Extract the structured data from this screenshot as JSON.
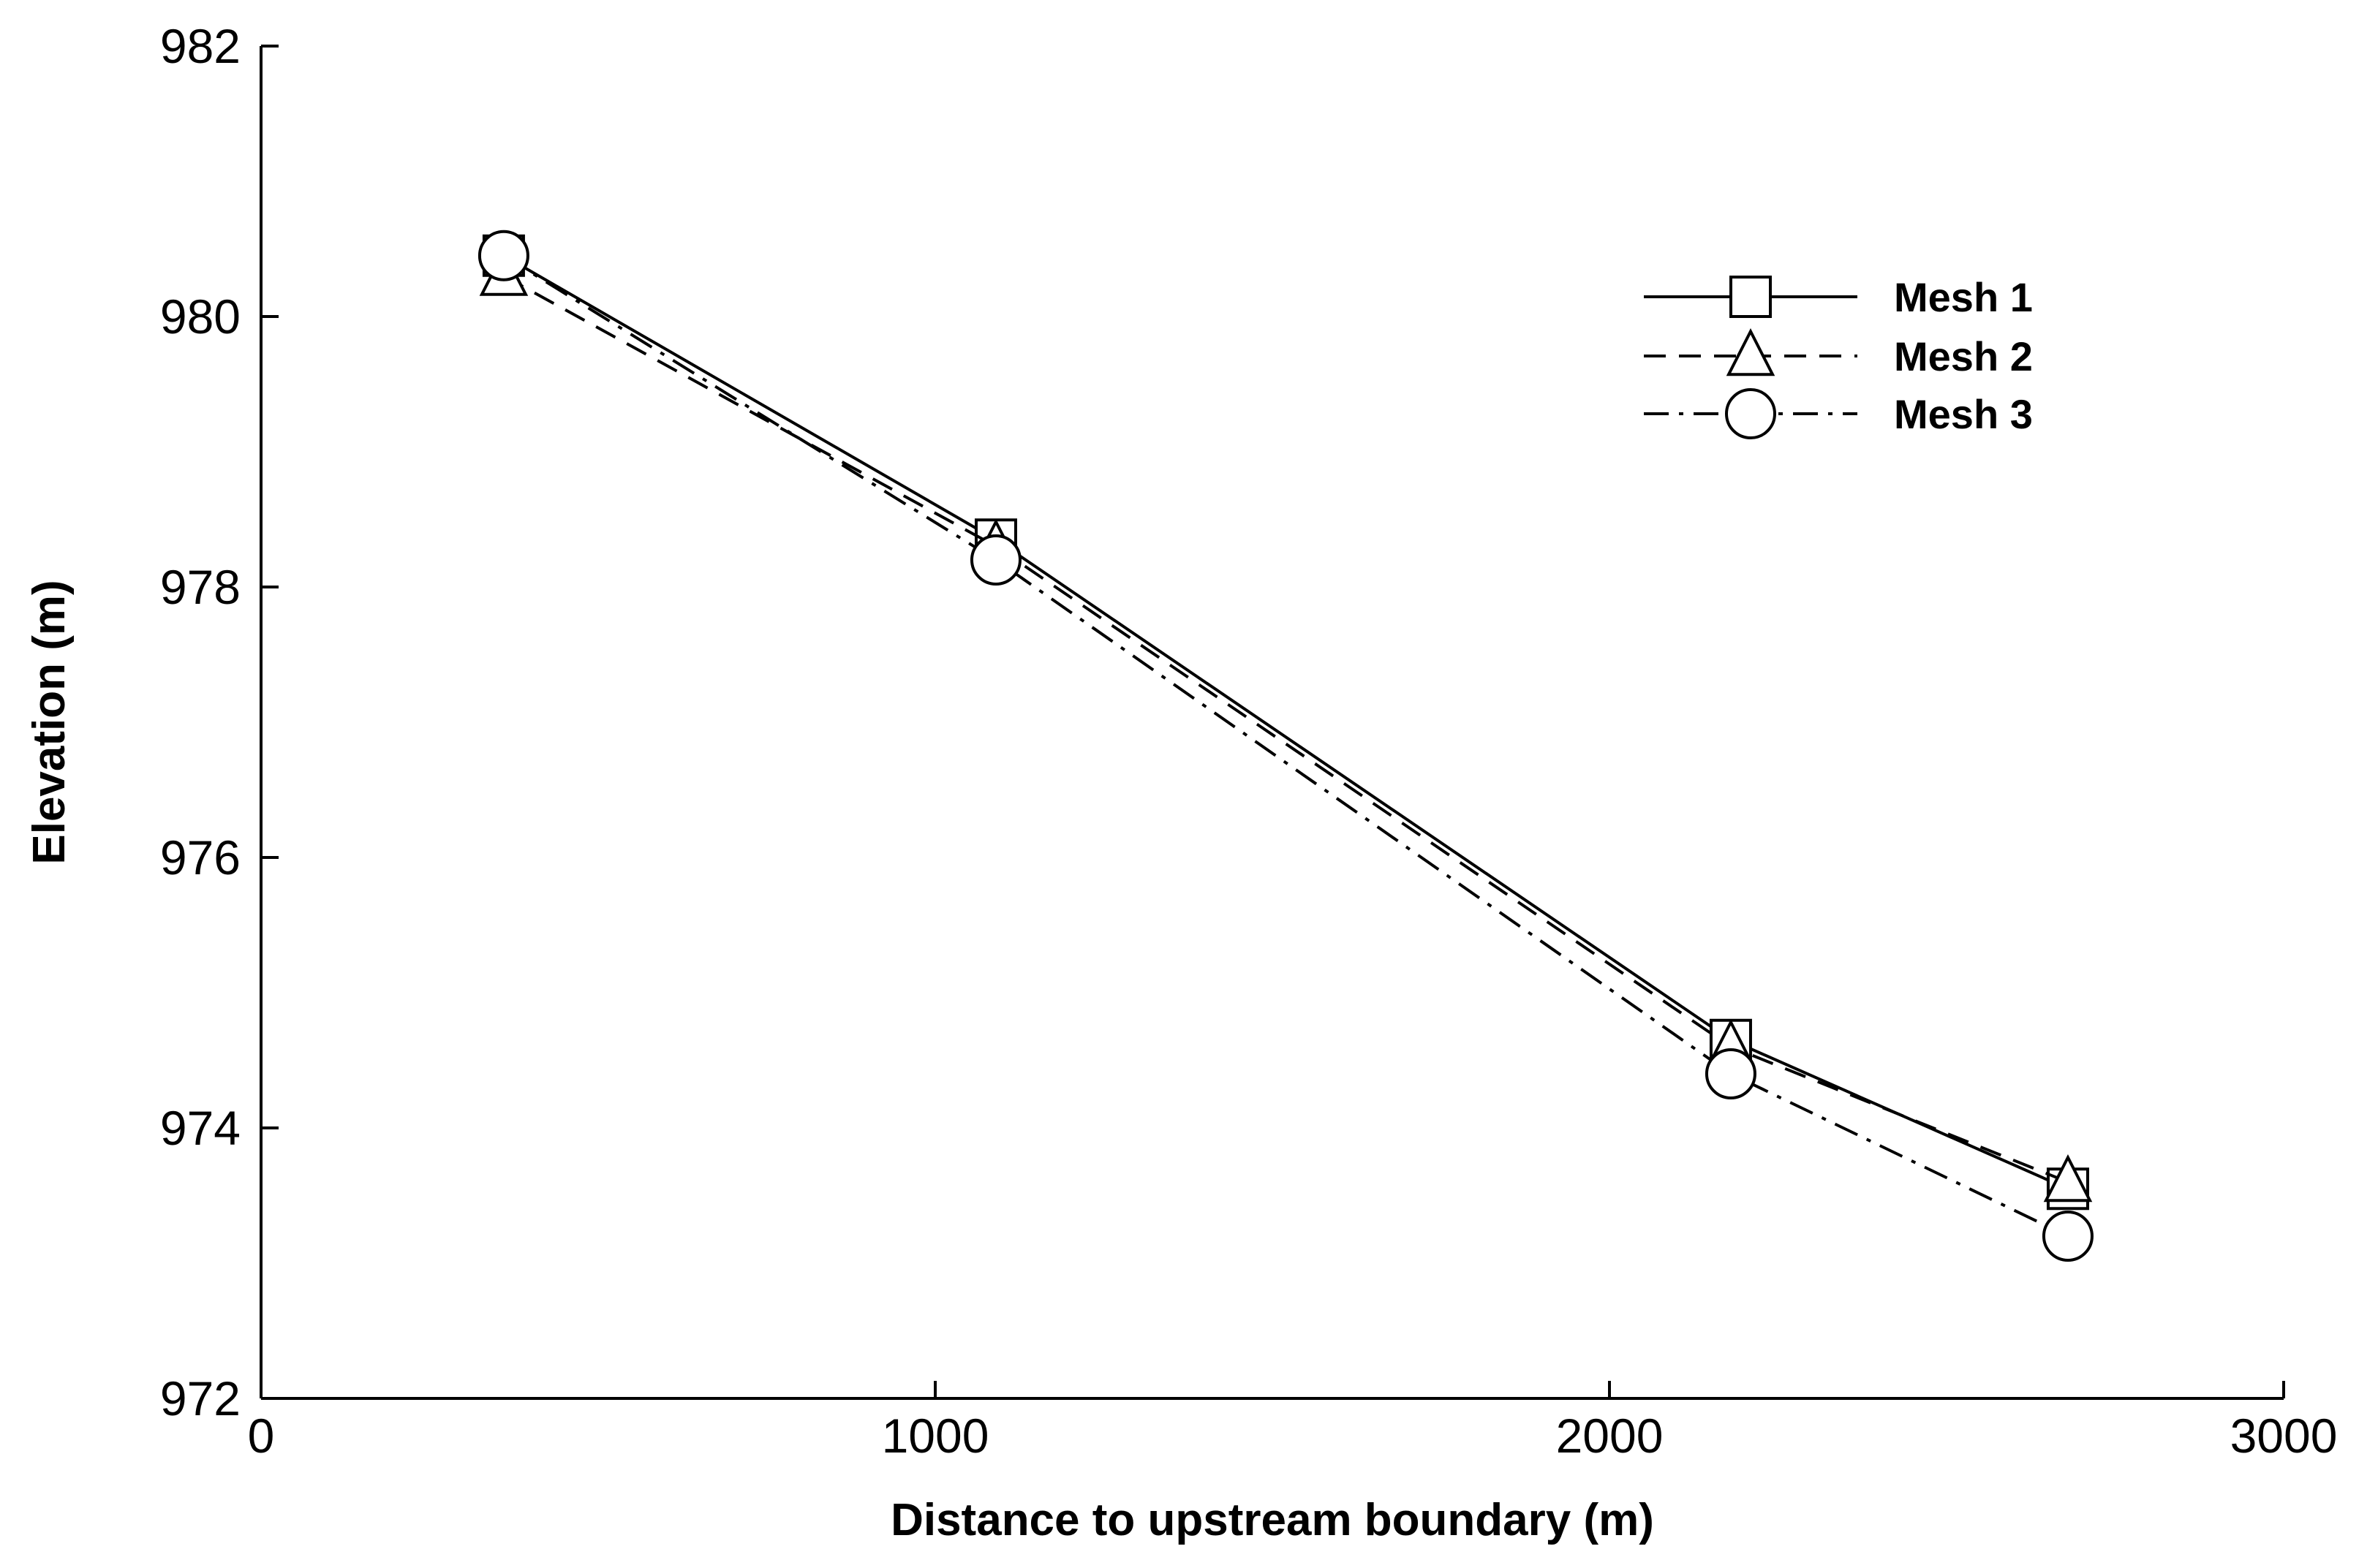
{
  "chart_data": {
    "type": "line",
    "xlabel": "Distance to upstream boundary (m)",
    "ylabel": "Elevation (m)",
    "xlim": [
      0,
      3000
    ],
    "ylim": [
      972,
      982
    ],
    "xticks": [
      "0",
      "1000",
      "2000",
      "3000"
    ],
    "yticks": [
      "972",
      "974",
      "976",
      "978",
      "980",
      "982"
    ],
    "grid": false,
    "legend_position": "top-right",
    "series": [
      {
        "name": "Mesh 1",
        "line_style": "solid",
        "marker": "square",
        "x": [
          360,
          1090,
          2180,
          2680
        ],
        "y": [
          980.45,
          978.35,
          974.65,
          973.55
        ]
      },
      {
        "name": "Mesh 2",
        "line_style": "dashed",
        "marker": "triangle",
        "x": [
          360,
          1090,
          2180,
          2680
        ],
        "y": [
          980.3,
          978.3,
          974.6,
          973.6
        ]
      },
      {
        "name": "Mesh 3",
        "line_style": "dash-dot",
        "marker": "circle",
        "x": [
          360,
          1090,
          2180,
          2680
        ],
        "y": [
          980.45,
          978.2,
          974.4,
          973.2
        ]
      }
    ]
  }
}
